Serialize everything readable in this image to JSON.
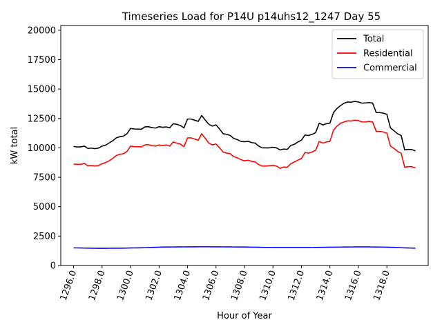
{
  "chart_data": {
    "type": "line",
    "title": "Timeseries Load for P14U p14uhs12_1247  Day 55",
    "xlabel": "Hour of Year",
    "ylabel": "kW total",
    "xlim": [
      1295.1,
      1320.9
    ],
    "ylim": [
      0,
      20400
    ],
    "xticks": [
      1296,
      1298,
      1300,
      1302,
      1304,
      1306,
      1308,
      1310,
      1312,
      1314,
      1316,
      1318
    ],
    "xtick_labels": [
      "1296.0",
      "1298.0",
      "1300.0",
      "1302.0",
      "1304.0",
      "1306.0",
      "1308.0",
      "1310.0",
      "1312.0",
      "1314.0",
      "1316.0",
      "1318.0"
    ],
    "yticks": [
      0,
      2500,
      5000,
      7500,
      10000,
      12500,
      15000,
      17500,
      20000
    ],
    "ytick_labels": [
      "0",
      "2500",
      "5000",
      "7500",
      "10000",
      "12500",
      "15000",
      "17500",
      "20000"
    ],
    "legend_position": "top-right",
    "x_start": 1296,
    "x_step": 0.25,
    "series": [
      {
        "name": "Total",
        "color": "#000000",
        "values": [
          10120,
          10080,
          10080,
          10150,
          9950,
          9980,
          9930,
          9980,
          10150,
          10230,
          10420,
          10600,
          10850,
          10950,
          11000,
          11200,
          11650,
          11600,
          11600,
          11580,
          11780,
          11800,
          11720,
          11680,
          11800,
          11750,
          11780,
          11700,
          12050,
          12000,
          11900,
          11700,
          12450,
          12450,
          12350,
          12250,
          12750,
          12350,
          12000,
          11850,
          11950,
          11600,
          11200,
          11150,
          11050,
          10800,
          10700,
          10550,
          10520,
          10560,
          10450,
          10400,
          10150,
          10000,
          10000,
          10000,
          10050,
          10000,
          9820,
          9900,
          9870,
          10200,
          10300,
          10500,
          10650,
          11100,
          11050,
          11150,
          11300,
          12100,
          11950,
          12050,
          12100,
          13000,
          13350,
          13600,
          13800,
          13900,
          13880,
          13950,
          13900,
          13800,
          13820,
          13850,
          13800,
          13000,
          13000,
          12950,
          12850,
          11700,
          11450,
          11200,
          11050,
          9830,
          9870,
          9850,
          9750
        ]
      },
      {
        "name": "Residential",
        "color": "#ff0000",
        "values": [
          8620,
          8600,
          8600,
          8680,
          8480,
          8500,
          8460,
          8500,
          8650,
          8750,
          8900,
          9100,
          9350,
          9450,
          9500,
          9700,
          10150,
          10100,
          10100,
          10080,
          10250,
          10280,
          10180,
          10150,
          10250,
          10180,
          10250,
          10150,
          10500,
          10400,
          10320,
          10100,
          10850,
          10850,
          10750,
          10650,
          11200,
          10800,
          10400,
          10250,
          10330,
          10000,
          9650,
          9550,
          9500,
          9250,
          9150,
          9000,
          8900,
          8950,
          8850,
          8800,
          8580,
          8450,
          8450,
          8480,
          8520,
          8450,
          8250,
          8380,
          8350,
          8650,
          8800,
          8950,
          9100,
          9600,
          9550,
          9650,
          9800,
          10550,
          10400,
          10500,
          10550,
          11500,
          11850,
          12100,
          12200,
          12300,
          12280,
          12350,
          12320,
          12200,
          12200,
          12250,
          12200,
          11400,
          11400,
          11350,
          11250,
          10150,
          9950,
          9700,
          9550,
          8350,
          8400,
          8400,
          8300
        ]
      },
      {
        "name": "Commercial",
        "color": "#0000ff",
        "values": [
          1500,
          1495,
          1490,
          1480,
          1475,
          1470,
          1465,
          1460,
          1460,
          1462,
          1465,
          1468,
          1470,
          1472,
          1475,
          1480,
          1490,
          1495,
          1500,
          1505,
          1510,
          1520,
          1530,
          1545,
          1560,
          1565,
          1570,
          1572,
          1575,
          1578,
          1580,
          1582,
          1585,
          1587,
          1588,
          1590,
          1590,
          1590,
          1590,
          1588,
          1586,
          1584,
          1582,
          1580,
          1578,
          1576,
          1574,
          1572,
          1570,
          1565,
          1560,
          1555,
          1548,
          1540,
          1535,
          1532,
          1530,
          1530,
          1530,
          1530,
          1530,
          1530,
          1530,
          1530,
          1530,
          1530,
          1530,
          1532,
          1535,
          1540,
          1545,
          1550,
          1555,
          1560,
          1565,
          1568,
          1570,
          1572,
          1575,
          1577,
          1578,
          1578,
          1578,
          1577,
          1575,
          1572,
          1568,
          1562,
          1555,
          1545,
          1535,
          1522,
          1510,
          1500,
          1490,
          1480,
          1470
        ]
      }
    ]
  }
}
